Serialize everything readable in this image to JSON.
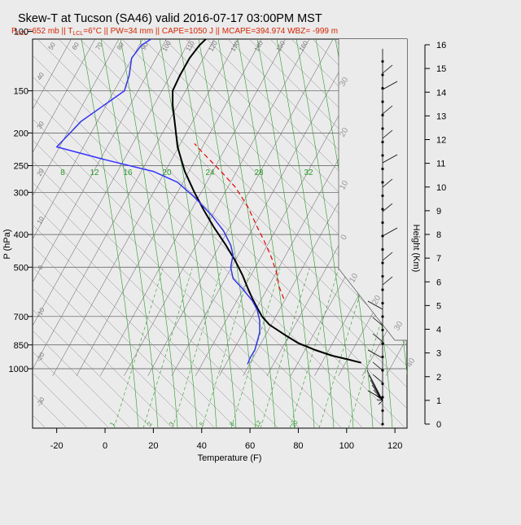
{
  "title": "Skew-T at Tucson (SA46) valid 2016-07-17 03:00PM MST",
  "subtitle": {
    "p_lcl": "652 mb",
    "t_lcl": "6°C",
    "pw": "34 mm",
    "cape": "1050 J",
    "mcape": "394.974",
    "wbz": "-999 m"
  },
  "colors": {
    "background": "#ebebeb",
    "temperature": "#000000",
    "dewpoint": "#3333ff",
    "parcel": "#ee0000",
    "mixing_ratio": "#2a9a2a",
    "subtitle": "#dd2200",
    "grid": "#555555"
  },
  "chart_data": {
    "type": "line",
    "title": "Skew-T at Tucson (SA46) valid 2016-07-17 03:00PM MST",
    "xlabel": "Temperature (F)",
    "ylabel": "P (hPa)",
    "y2label": "Height (Km)",
    "x_ticks": [
      -20,
      0,
      20,
      40,
      60,
      80,
      100,
      120
    ],
    "xlim": [
      -30,
      125
    ],
    "y_ticks": [
      100,
      150,
      200,
      250,
      300,
      400,
      500,
      700,
      850,
      1000
    ],
    "ylim": [
      1050,
      100
    ],
    "y_scale": "log",
    "height_ticks": [
      0,
      1,
      2,
      3,
      4,
      5,
      6,
      7,
      8,
      9,
      10,
      11,
      12,
      13,
      14,
      15,
      16
    ],
    "dry_adiabat_labels": [
      "-20",
      "-10",
      "0",
      "10",
      "20",
      "30",
      "40",
      "50",
      "60",
      "70",
      "80",
      "90",
      "100",
      "110",
      "120",
      "130",
      "140",
      "150",
      "160"
    ],
    "upper_adiabat_labels": [
      "30",
      "20",
      "10",
      "0"
    ],
    "lower_adiabat_labels": [
      "10",
      "20",
      "30",
      "40"
    ],
    "mixing_ratio_upper": [
      "8",
      "12",
      "16",
      "20",
      "24",
      "28",
      "32"
    ],
    "mixing_ratio_lower": [
      "1",
      "2",
      "3",
      "5",
      "8",
      "12",
      "20"
    ],
    "grid": true,
    "series": [
      {
        "key": "temperature",
        "x": [
          106,
          101,
          94,
          87,
          80,
          74,
          68,
          65,
          63,
          61,
          59,
          57,
          54,
          50,
          45,
          41,
          37,
          33,
          30,
          29,
          28,
          28,
          31,
          35,
          39,
          45
        ],
        "y": [
          960,
          940,
          915,
          880,
          840,
          790,
          740,
          700,
          660,
          620,
          575,
          530,
          480,
          430,
          380,
          340,
          300,
          260,
          220,
          190,
          165,
          150,
          135,
          120,
          110,
          100
        ]
      },
      {
        "key": "dewpoint",
        "x": [
          59,
          60,
          62,
          63,
          64,
          64,
          63,
          61,
          57,
          53,
          52,
          53,
          52,
          49,
          44,
          37,
          30,
          20,
          0,
          -20,
          -10,
          8,
          10,
          11,
          15,
          24
        ],
        "y": [
          970,
          930,
          880,
          830,
          780,
          720,
          670,
          630,
          580,
          540,
          500,
          460,
          430,
          390,
          350,
          310,
          280,
          260,
          240,
          220,
          185,
          150,
          135,
          120,
          110,
          100
        ]
      },
      {
        "key": "parcel",
        "x": [
          74,
          72,
          71,
          69,
          66,
          63,
          59,
          54,
          48,
          42,
          37
        ],
        "y": [
          620,
          570,
          520,
          470,
          420,
          380,
          330,
          290,
          260,
          235,
          215
        ]
      }
    ]
  }
}
